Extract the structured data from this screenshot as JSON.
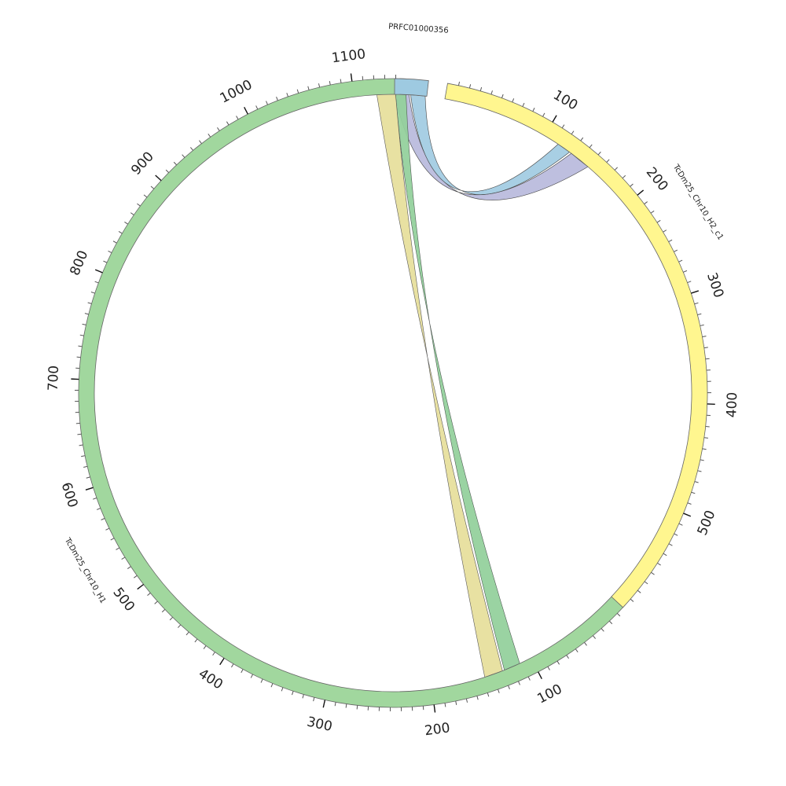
{
  "segments": [
    {
      "id": "H1",
      "label": "TcDm25_Chr10_H1",
      "length": 1150,
      "color": "#a1d79e",
      "ticks": [
        100,
        200,
        300,
        400,
        500,
        600,
        700,
        800,
        900,
        1000,
        1100
      ]
    },
    {
      "id": "PRFC",
      "label": "PRFC01000356",
      "length": 10,
      "color": "#9ecae1",
      "ticks": []
    },
    {
      "id": "H2",
      "label": "TcDm25_Chr10_H2_c1",
      "length": 600,
      "color": "#fff68f",
      "ticks": [
        100,
        200,
        300,
        400,
        500
      ]
    }
  ],
  "links": [
    {
      "from": {
        "segment": "PRFC",
        "start": 0,
        "end": 4.5
      },
      "to": {
        "segment": "H2",
        "start": 130,
        "end": 150
      },
      "color": "#b7b8dc"
    },
    {
      "from": {
        "segment": "PRFC",
        "start": 5.0,
        "end": 9.5
      },
      "to": {
        "segment": "H2",
        "start": 115,
        "end": 128
      },
      "color": "#9ecae1"
    },
    {
      "from": {
        "segment": "H1",
        "start": 1140,
        "end": 1150
      },
      "to": {
        "segment": "H1",
        "start": 112,
        "end": 128
      },
      "color": "#a1d79e",
      "overlap_color": "#7ec697",
      "overlap": {
        "segment": "H1",
        "start": 1140,
        "end": 1150
      }
    },
    {
      "from": {
        "segment": "H1",
        "start": 1122,
        "end": 1140
      },
      "to": {
        "segment": "H1",
        "start": 130,
        "end": 148
      },
      "color": "#fff68f",
      "overlap_color": "#bdb8b2",
      "overlap": {
        "segment": "H1",
        "start": 1122,
        "end": 1140
      }
    }
  ]
}
